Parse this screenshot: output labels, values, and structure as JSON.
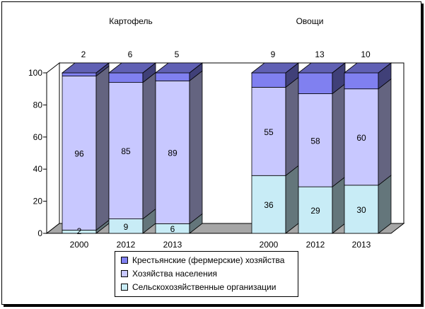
{
  "chart_data": {
    "type": "bar",
    "stacked": true,
    "three_d": true,
    "groups": [
      {
        "label": "Картофель",
        "categories": [
          "2000",
          "2012",
          "2013"
        ]
      },
      {
        "label": "Овощи",
        "categories": [
          "2000",
          "2012",
          "2013"
        ]
      }
    ],
    "categories": [
      "2000",
      "2012",
      "2013",
      "2000",
      "2012",
      "2013"
    ],
    "series": [
      {
        "name": "Сельскохозяйственные организации",
        "color": "#c8ecf6",
        "values": [
          2,
          9,
          6,
          36,
          29,
          30
        ]
      },
      {
        "name": "Хозяйства населения",
        "color": "#c8c8ff",
        "values": [
          96,
          85,
          89,
          55,
          58,
          60
        ]
      },
      {
        "name": "Крестьянские (фермерские) хозяйства",
        "color": "#8080f0",
        "values": [
          2,
          6,
          5,
          9,
          13,
          10
        ]
      }
    ],
    "ylim": [
      0,
      100
    ],
    "yticks": [
      0,
      20,
      40,
      60,
      80,
      100
    ],
    "grid": false,
    "legend_position": "bottom"
  },
  "legend": {
    "items": [
      {
        "label": "Крестьянские (фермерские) хозяйства",
        "color": "#8080f0"
      },
      {
        "label": "Хозяйства населения",
        "color": "#c8c8ff"
      },
      {
        "label": "Сельскохозяйственные организации",
        "color": "#c8ecf6"
      }
    ]
  }
}
